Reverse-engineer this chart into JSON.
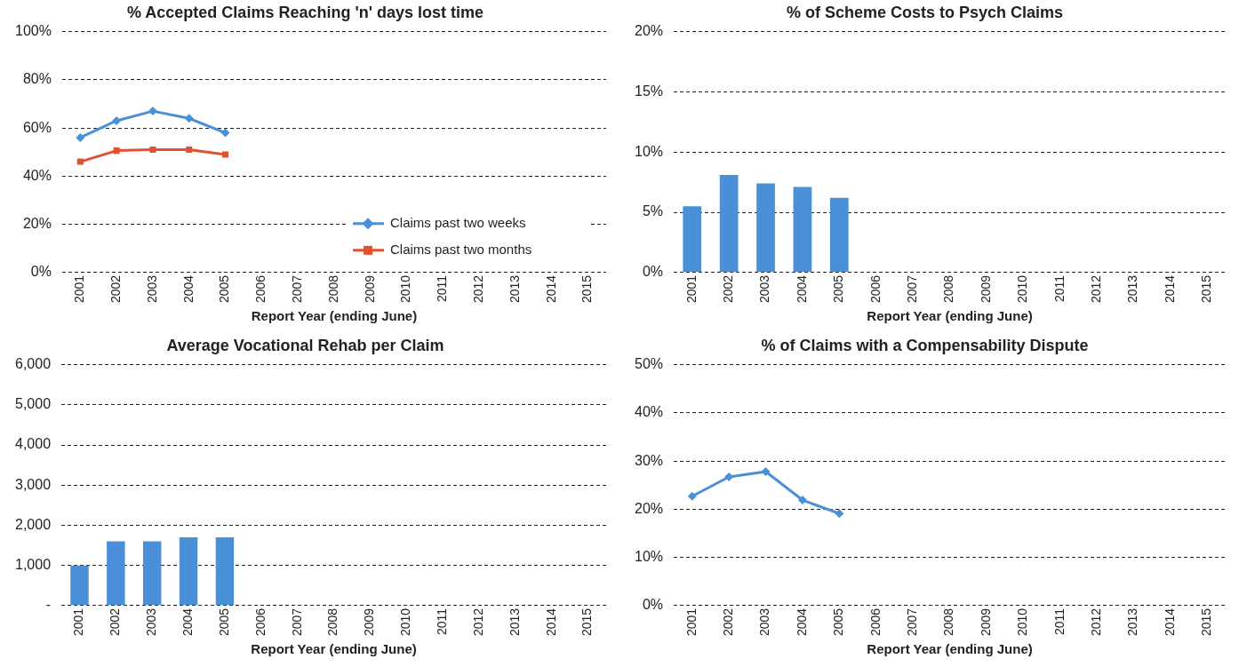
{
  "chart_data": [
    {
      "type": "line",
      "title": "% Accepted Claims Reaching 'n' days lost time",
      "xlabel": "Report Year (ending June)",
      "categories": [
        "2001",
        "2002",
        "2003",
        "2004",
        "2005",
        "2006",
        "2007",
        "2008",
        "2009",
        "2010",
        "2011",
        "2012",
        "2013",
        "2014",
        "2015"
      ],
      "series": [
        {
          "name": "Claims past two weeks",
          "color": "#4a90d9",
          "marker": "diamond",
          "values": [
            56,
            63,
            67,
            64,
            58,
            null,
            null,
            null,
            null,
            null,
            null,
            null,
            null,
            null,
            null
          ]
        },
        {
          "name": "Claims past two months",
          "color": "#e0522e",
          "marker": "square",
          "values": [
            46,
            50.6,
            51,
            51,
            49,
            null,
            null,
            null,
            null,
            null,
            null,
            null,
            null,
            null,
            null
          ]
        }
      ],
      "ylim": [
        0,
        100
      ],
      "yticks": [
        {
          "value": 0,
          "label": "0%"
        },
        {
          "value": 20,
          "label": "20%"
        },
        {
          "value": 40,
          "label": "40%"
        },
        {
          "value": 60,
          "label": "60%"
        },
        {
          "value": 80,
          "label": "80%"
        },
        {
          "value": 100,
          "label": "100%"
        }
      ],
      "grid": "y",
      "legend": "bottom right",
      "line_style": "solid"
    },
    {
      "type": "bar",
      "title": "% of Scheme Costs to Psych Claims",
      "xlabel": "Report Year (ending June)",
      "categories": [
        "2001",
        "2002",
        "2003",
        "2004",
        "2005",
        "2006",
        "2007",
        "2008",
        "2009",
        "2010",
        "2011",
        "2012",
        "2013",
        "2014",
        "2015"
      ],
      "color": "#4a90d9",
      "values": [
        5.5,
        8.1,
        7.4,
        7.1,
        6.2,
        null,
        null,
        null,
        null,
        null,
        null,
        null,
        null,
        null,
        null
      ],
      "ylim": [
        0,
        20
      ],
      "yticks": [
        {
          "value": 0,
          "label": "0%"
        },
        {
          "value": 5,
          "label": "5%"
        },
        {
          "value": 10,
          "label": "10%"
        },
        {
          "value": 15,
          "label": "15%"
        },
        {
          "value": 20,
          "label": "20%"
        }
      ],
      "grid": "y",
      "legend": false
    },
    {
      "type": "bar",
      "title": "Average Vocational Rehab per Claim",
      "xlabel": "Report Year (ending June)",
      "categories": [
        "2001",
        "2002",
        "2003",
        "2004",
        "2005",
        "2006",
        "2007",
        "2008",
        "2009",
        "2010",
        "2011",
        "2012",
        "2013",
        "2014",
        "2015"
      ],
      "color": "#4a90d9",
      "values": [
        1000,
        1600,
        1600,
        1700,
        1700,
        null,
        null,
        null,
        null,
        null,
        null,
        null,
        null,
        null,
        null
      ],
      "ylim": [
        0,
        6000
      ],
      "yticks": [
        {
          "value": 0,
          "label": "-"
        },
        {
          "value": 1000,
          "label": "1,000"
        },
        {
          "value": 2000,
          "label": "2,000"
        },
        {
          "value": 3000,
          "label": "3,000"
        },
        {
          "value": 4000,
          "label": "4,000"
        },
        {
          "value": 5000,
          "label": "5,000"
        },
        {
          "value": 6000,
          "label": "6,000"
        }
      ],
      "grid": "y",
      "legend": false
    },
    {
      "type": "line",
      "title": "% of Claims with a Compensability Dispute",
      "xlabel": "Report Year (ending June)",
      "categories": [
        "2001",
        "2002",
        "2003",
        "2004",
        "2005",
        "2006",
        "2007",
        "2008",
        "2009",
        "2010",
        "2011",
        "2012",
        "2013",
        "2014",
        "2015"
      ],
      "color": "#4a90d9",
      "marker": "diamond",
      "values": [
        22.7,
        26.7,
        27.8,
        21.9,
        19.1,
        null,
        null,
        null,
        null,
        null,
        null,
        null,
        null,
        null,
        null
      ],
      "ylim": [
        0,
        50
      ],
      "yticks": [
        {
          "value": 0,
          "label": "0%"
        },
        {
          "value": 10,
          "label": "10%"
        },
        {
          "value": 20,
          "label": "20%"
        },
        {
          "value": 30,
          "label": "30%"
        },
        {
          "value": 40,
          "label": "40%"
        },
        {
          "value": 50,
          "label": "50%"
        }
      ],
      "grid": "y",
      "legend": false,
      "line_style": "solid"
    }
  ]
}
